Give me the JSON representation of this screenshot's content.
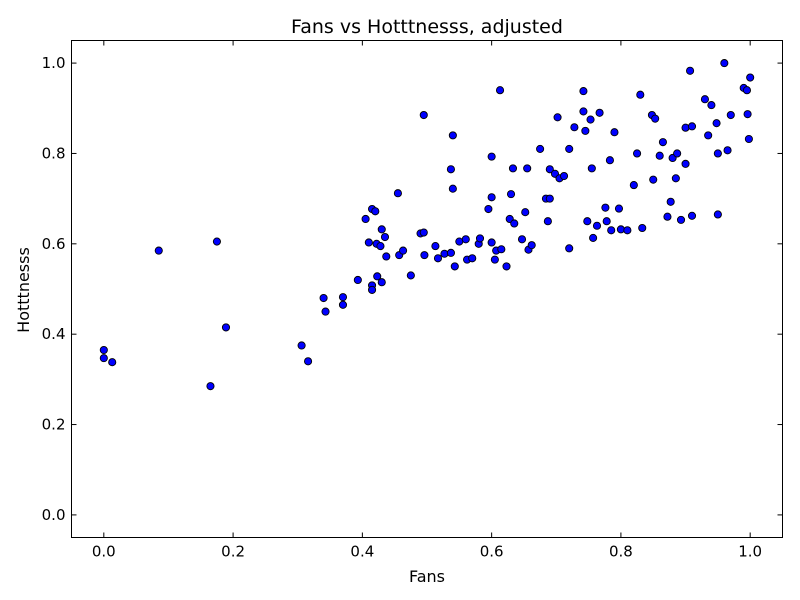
{
  "chart_data": {
    "type": "scatter",
    "title": "Fans vs Hotttnesss, adjusted",
    "xlabel": "Fans",
    "ylabel": "Hotttnesss",
    "xlim": [
      -0.05,
      1.05
    ],
    "ylim": [
      -0.05,
      1.05
    ],
    "xticks": [
      0.0,
      0.2,
      0.4,
      0.6,
      0.8,
      1.0
    ],
    "xtick_labels": [
      "0.0",
      "0.2",
      "0.4",
      "0.6",
      "0.8",
      "1.0"
    ],
    "yticks": [
      0.0,
      0.2,
      0.4,
      0.6,
      0.8,
      1.0
    ],
    "ytick_labels": [
      "0.0",
      "0.2",
      "0.4",
      "0.6",
      "0.8",
      "1.0"
    ],
    "grid": false,
    "marker_color": "#0000ff",
    "marker_edge_color": "#000000",
    "points": [
      [
        0.0,
        0.365
      ],
      [
        0.0,
        0.347
      ],
      [
        0.013,
        0.338
      ],
      [
        0.085,
        0.585
      ],
      [
        0.165,
        0.285
      ],
      [
        0.175,
        0.605
      ],
      [
        0.189,
        0.415
      ],
      [
        0.306,
        0.375
      ],
      [
        0.316,
        0.34
      ],
      [
        0.34,
        0.48
      ],
      [
        0.343,
        0.45
      ],
      [
        0.37,
        0.482
      ],
      [
        0.37,
        0.465
      ],
      [
        0.393,
        0.52
      ],
      [
        0.405,
        0.655
      ],
      [
        0.41,
        0.603
      ],
      [
        0.415,
        0.677
      ],
      [
        0.415,
        0.508
      ],
      [
        0.415,
        0.498
      ],
      [
        0.42,
        0.672
      ],
      [
        0.422,
        0.6
      ],
      [
        0.423,
        0.528
      ],
      [
        0.428,
        0.595
      ],
      [
        0.43,
        0.632
      ],
      [
        0.43,
        0.515
      ],
      [
        0.435,
        0.615
      ],
      [
        0.437,
        0.572
      ],
      [
        0.455,
        0.712
      ],
      [
        0.457,
        0.575
      ],
      [
        0.463,
        0.585
      ],
      [
        0.475,
        0.53
      ],
      [
        0.49,
        0.623
      ],
      [
        0.495,
        0.885
      ],
      [
        0.495,
        0.625
      ],
      [
        0.496,
        0.575
      ],
      [
        0.513,
        0.595
      ],
      [
        0.517,
        0.568
      ],
      [
        0.527,
        0.578
      ],
      [
        0.537,
        0.58
      ],
      [
        0.537,
        0.765
      ],
      [
        0.54,
        0.722
      ],
      [
        0.54,
        0.84
      ],
      [
        0.543,
        0.55
      ],
      [
        0.55,
        0.605
      ],
      [
        0.56,
        0.61
      ],
      [
        0.562,
        0.565
      ],
      [
        0.57,
        0.568
      ],
      [
        0.58,
        0.6
      ],
      [
        0.582,
        0.612
      ],
      [
        0.595,
        0.677
      ],
      [
        0.6,
        0.703
      ],
      [
        0.6,
        0.793
      ],
      [
        0.6,
        0.603
      ],
      [
        0.605,
        0.565
      ],
      [
        0.607,
        0.585
      ],
      [
        0.613,
        0.94
      ],
      [
        0.615,
        0.588
      ],
      [
        0.623,
        0.55
      ],
      [
        0.628,
        0.655
      ],
      [
        0.63,
        0.71
      ],
      [
        0.633,
        0.767
      ],
      [
        0.635,
        0.645
      ],
      [
        0.647,
        0.61
      ],
      [
        0.652,
        0.67
      ],
      [
        0.655,
        0.767
      ],
      [
        0.657,
        0.587
      ],
      [
        0.662,
        0.597
      ],
      [
        0.675,
        0.81
      ],
      [
        0.684,
        0.7
      ],
      [
        0.687,
        0.65
      ],
      [
        0.69,
        0.765
      ],
      [
        0.69,
        0.7
      ],
      [
        0.698,
        0.755
      ],
      [
        0.702,
        0.88
      ],
      [
        0.705,
        0.745
      ],
      [
        0.712,
        0.75
      ],
      [
        0.72,
        0.81
      ],
      [
        0.72,
        0.59
      ],
      [
        0.728,
        0.858
      ],
      [
        0.742,
        0.938
      ],
      [
        0.742,
        0.893
      ],
      [
        0.745,
        0.85
      ],
      [
        0.748,
        0.65
      ],
      [
        0.753,
        0.875
      ],
      [
        0.755,
        0.767
      ],
      [
        0.757,
        0.613
      ],
      [
        0.763,
        0.64
      ],
      [
        0.767,
        0.89
      ],
      [
        0.776,
        0.68
      ],
      [
        0.778,
        0.65
      ],
      [
        0.783,
        0.785
      ],
      [
        0.785,
        0.63
      ],
      [
        0.79,
        0.847
      ],
      [
        0.797,
        0.678
      ],
      [
        0.8,
        0.632
      ],
      [
        0.81,
        0.63
      ],
      [
        0.82,
        0.73
      ],
      [
        0.825,
        0.8
      ],
      [
        0.83,
        0.93
      ],
      [
        0.833,
        0.635
      ],
      [
        0.848,
        0.885
      ],
      [
        0.85,
        0.742
      ],
      [
        0.853,
        0.877
      ],
      [
        0.86,
        0.795
      ],
      [
        0.865,
        0.825
      ],
      [
        0.872,
        0.66
      ],
      [
        0.877,
        0.693
      ],
      [
        0.88,
        0.79
      ],
      [
        0.885,
        0.745
      ],
      [
        0.887,
        0.8
      ],
      [
        0.893,
        0.653
      ],
      [
        0.9,
        0.857
      ],
      [
        0.9,
        0.777
      ],
      [
        0.907,
        0.983
      ],
      [
        0.91,
        0.86
      ],
      [
        0.91,
        0.662
      ],
      [
        0.93,
        0.92
      ],
      [
        0.935,
        0.84
      ],
      [
        0.94,
        0.907
      ],
      [
        0.948,
        0.867
      ],
      [
        0.95,
        0.8
      ],
      [
        0.95,
        0.665
      ],
      [
        0.96,
        1.0
      ],
      [
        0.965,
        0.807
      ],
      [
        0.97,
        0.885
      ],
      [
        0.99,
        0.945
      ],
      [
        0.995,
        0.94
      ],
      [
        0.996,
        0.887
      ],
      [
        0.998,
        0.832
      ],
      [
        1.0,
        0.968
      ]
    ]
  }
}
